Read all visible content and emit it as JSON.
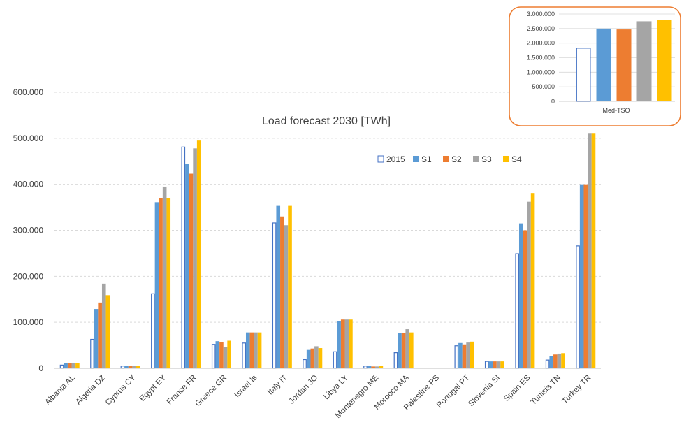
{
  "chart_data": [
    {
      "type": "bar",
      "title": "Load forecast 2030 [TWh]",
      "xlabel": "",
      "ylabel": "",
      "ylim": [
        0,
        600000
      ],
      "ytick_labels": [
        "0",
        "100.000",
        "200.000",
        "300.000",
        "400.000",
        "500.000",
        "600.000"
      ],
      "grid": true,
      "legend_position": "top-right",
      "categories": [
        "Albania AL",
        "Algeria DZ",
        "Cyprus CY",
        "Egypt EY",
        "France FR",
        "Greece GR",
        "Israel Is",
        "Italy IT",
        "Jordan JO",
        "Libya LY",
        "Montenegro ME",
        "Morocco MA",
        "Palestine PS",
        "Portugal PT",
        "Slovenia SI",
        "Spain ES",
        "Tunisia TN",
        "Turkey TR"
      ],
      "series": [
        {
          "name": "2015",
          "color": "#4472C4",
          "fill": "#ffffff",
          "outline": true,
          "values": [
            7000,
            63000,
            5000,
            162000,
            481000,
            52000,
            55000,
            316000,
            19000,
            36000,
            5000,
            34000,
            0,
            49000,
            15000,
            249000,
            18000,
            266000
          ]
        },
        {
          "name": "S1",
          "color": "#5B9BD5",
          "values": [
            11000,
            129000,
            5000,
            361000,
            445000,
            59000,
            78000,
            353000,
            40000,
            103000,
            5000,
            77000,
            0,
            55000,
            15000,
            315000,
            27000,
            400000
          ]
        },
        {
          "name": "S2",
          "color": "#ED7D31",
          "values": [
            11000,
            143000,
            5000,
            370000,
            423000,
            57000,
            78000,
            330000,
            43000,
            106000,
            4000,
            77000,
            0,
            52000,
            15000,
            300000,
            30000,
            400000
          ]
        },
        {
          "name": "S3",
          "color": "#A5A5A5",
          "values": [
            11000,
            184000,
            6000,
            395000,
            478000,
            47000,
            78000,
            311000,
            48000,
            106000,
            4000,
            85000,
            0,
            56000,
            15000,
            362000,
            32000,
            510000
          ]
        },
        {
          "name": "S4",
          "color": "#FFC000",
          "values": [
            11000,
            159000,
            6000,
            370000,
            495000,
            60000,
            78000,
            353000,
            44000,
            106000,
            5000,
            78000,
            0,
            58000,
            15000,
            381000,
            33000,
            510000
          ]
        }
      ]
    },
    {
      "type": "bar",
      "title": "",
      "ylim": [
        0,
        3000000
      ],
      "ytick_labels": [
        "0",
        "500.000",
        "1.000.000",
        "1.500.000",
        "2.000.000",
        "2.500.000",
        "3.000.000"
      ],
      "grid": true,
      "categories": [
        "Med-TSO"
      ],
      "frame_color": "#ED7D31",
      "series": [
        {
          "name": "2015",
          "color": "#4472C4",
          "outline": true,
          "values": [
            1830000
          ]
        },
        {
          "name": "S1",
          "color": "#5B9BD5",
          "values": [
            2500000
          ]
        },
        {
          "name": "S2",
          "color": "#ED7D31",
          "values": [
            2470000
          ]
        },
        {
          "name": "S3",
          "color": "#A5A5A5",
          "values": [
            2750000
          ]
        },
        {
          "name": "S4",
          "color": "#FFC000",
          "values": [
            2790000
          ]
        }
      ]
    }
  ]
}
